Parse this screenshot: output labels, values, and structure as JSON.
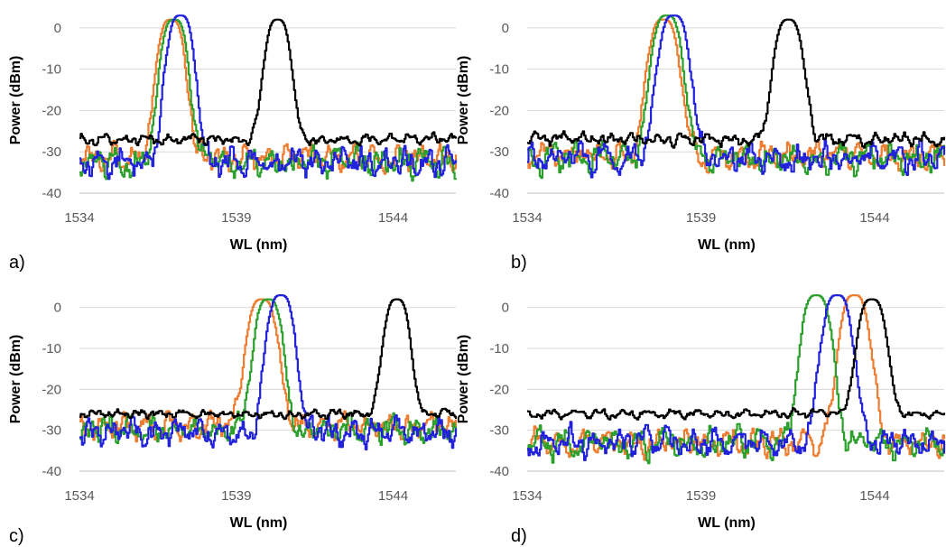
{
  "chart_data": [
    {
      "type": "line",
      "panel_label": "a)",
      "xlabel": "WL (nm)",
      "ylabel": "Power (dBm)",
      "xlim": [
        1534,
        1546
      ],
      "ylim": [
        -40,
        5
      ],
      "xticks": [
        1534,
        1539,
        1544
      ],
      "yticks": [
        0,
        -10,
        -20,
        -30,
        -40
      ],
      "grid": "horizontal",
      "series": [
        {
          "color": "#ED7D31",
          "peak_x": 1536.9,
          "peak_y": 2,
          "peak_halfwidth": 0.55,
          "floor_y": -31.5,
          "noise": 3.0
        },
        {
          "color": "#2CA02C",
          "peak_x": 1537.0,
          "peak_y": 2,
          "peak_halfwidth": 0.55,
          "floor_y": -32.5,
          "noise": 3.2
        },
        {
          "color": "#2222DD",
          "peak_x": 1537.2,
          "peak_y": 3,
          "peak_halfwidth": 0.55,
          "floor_y": -32.5,
          "noise": 3.2
        },
        {
          "color": "#000000",
          "peak_x": 1540.3,
          "peak_y": 2,
          "peak_halfwidth": 0.5,
          "floor_y": -27,
          "noise": 1.2
        }
      ]
    },
    {
      "type": "line",
      "panel_label": "b)",
      "xlabel": "WL (nm)",
      "ylabel": "Power (dBm)",
      "xlim": [
        1534,
        1546
      ],
      "ylim": [
        -40,
        5
      ],
      "xticks": [
        1534,
        1539,
        1544
      ],
      "yticks": [
        0,
        -10,
        -20,
        -30,
        -40
      ],
      "grid": "horizontal",
      "series": [
        {
          "color": "#ED7D31",
          "peak_x": 1537.9,
          "peak_y": 2,
          "peak_halfwidth": 0.55,
          "floor_y": -31,
          "noise": 3.0
        },
        {
          "color": "#2CA02C",
          "peak_x": 1538.0,
          "peak_y": 3,
          "peak_halfwidth": 0.55,
          "floor_y": -31.5,
          "noise": 3.2
        },
        {
          "color": "#2222DD",
          "peak_x": 1538.2,
          "peak_y": 3,
          "peak_halfwidth": 0.55,
          "floor_y": -31.5,
          "noise": 3.2
        },
        {
          "color": "#000000",
          "peak_x": 1541.5,
          "peak_y": 2,
          "peak_halfwidth": 0.5,
          "floor_y": -27,
          "noise": 1.5
        }
      ]
    },
    {
      "type": "line",
      "panel_label": "c)",
      "xlabel": "WL (nm)",
      "ylabel": "Power (dBm)",
      "xlim": [
        1534,
        1546
      ],
      "ylim": [
        -40,
        5
      ],
      "xticks": [
        1534,
        1539,
        1544
      ],
      "yticks": [
        0,
        -10,
        -20,
        -30,
        -40
      ],
      "grid": "horizontal",
      "series": [
        {
          "color": "#ED7D31",
          "peak_x": 1539.8,
          "peak_y": 2,
          "peak_halfwidth": 0.6,
          "floor_y": -29,
          "noise": 2.8
        },
        {
          "color": "#2CA02C",
          "peak_x": 1540.0,
          "peak_y": 2,
          "peak_halfwidth": 0.55,
          "floor_y": -30,
          "noise": 3.0
        },
        {
          "color": "#2222DD",
          "peak_x": 1540.4,
          "peak_y": 3,
          "peak_halfwidth": 0.55,
          "floor_y": -30.5,
          "noise": 3.0
        },
        {
          "color": "#000000",
          "peak_x": 1544.1,
          "peak_y": 2,
          "peak_halfwidth": 0.5,
          "floor_y": -26,
          "noise": 1.0
        }
      ]
    },
    {
      "type": "line",
      "panel_label": "d)",
      "xlabel": "WL (nm)",
      "ylabel": "Power (dBm)",
      "xlim": [
        1534,
        1546
      ],
      "ylim": [
        -40,
        5
      ],
      "xticks": [
        1534,
        1539,
        1544
      ],
      "yticks": [
        0,
        -10,
        -20,
        -30,
        -40
      ],
      "grid": "horizontal",
      "series": [
        {
          "color": "#ED7D31",
          "peak_x": 1543.4,
          "peak_y": 3,
          "peak_halfwidth": 0.55,
          "floor_y": -33,
          "noise": 3.0
        },
        {
          "color": "#2CA02C",
          "peak_x": 1542.3,
          "peak_y": 3,
          "peak_halfwidth": 0.55,
          "floor_y": -33,
          "noise": 3.2
        },
        {
          "color": "#2222DD",
          "peak_x": 1542.9,
          "peak_y": 3,
          "peak_halfwidth": 0.55,
          "floor_y": -33,
          "noise": 3.2
        },
        {
          "color": "#000000",
          "peak_x": 1543.9,
          "peak_y": 2,
          "peak_halfwidth": 0.5,
          "floor_y": -26,
          "noise": 1.0
        }
      ]
    }
  ]
}
